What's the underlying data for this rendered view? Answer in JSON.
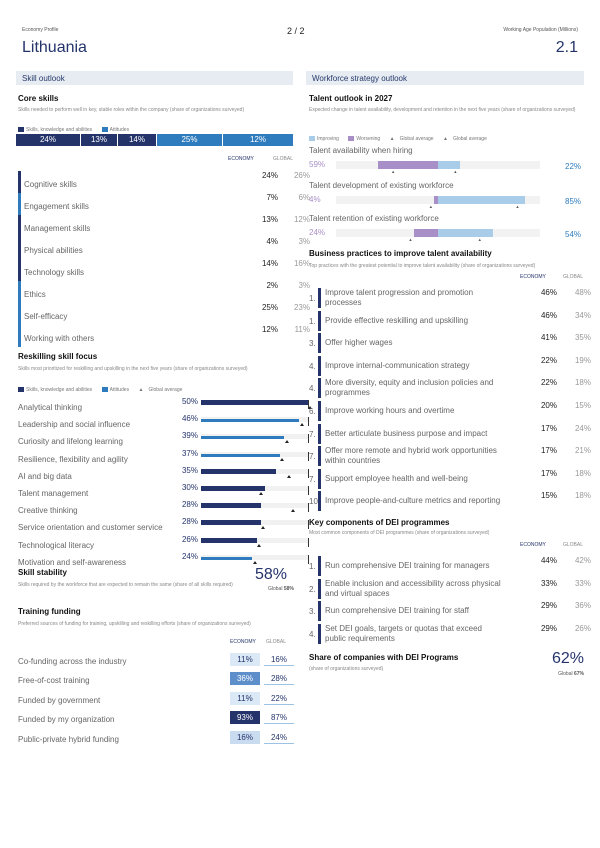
{
  "header": {
    "left": "Economy Profile",
    "page": "2 / 2",
    "right": "Working Age Population (Millions)",
    "country": "Lithuania",
    "population": "2.1"
  },
  "skill_outlook": {
    "title": "Skill outlook",
    "core_skills": {
      "title": "Core skills",
      "desc": "Skills needed to perform well in key, stable roles within the company (share of organizations surveyed)",
      "legend": [
        "Skills, knowledge and abilities",
        "Attitudes"
      ],
      "strip": [
        "24%",
        "13%",
        "14%",
        "25%",
        "12%"
      ],
      "col_economy": "ECONOMY",
      "col_global": "GLOBAL",
      "rows": [
        {
          "name": "Cognitive skills",
          "economy": "24%",
          "global": "26%"
        },
        {
          "name": "Engagement skills",
          "economy": "7%",
          "global": "6%"
        },
        {
          "name": "Management skills",
          "economy": "13%",
          "global": "12%"
        },
        {
          "name": "Physical abilities",
          "economy": "4%",
          "global": "3%"
        },
        {
          "name": "Technology skills",
          "economy": "14%",
          "global": "16%"
        },
        {
          "name": "Ethics",
          "economy": "2%",
          "global": "3%"
        },
        {
          "name": "Self-efficacy",
          "economy": "25%",
          "global": "23%"
        },
        {
          "name": "Working with others",
          "economy": "12%",
          "global": "11%"
        }
      ]
    },
    "reskilling": {
      "title": "Reskilling skill focus",
      "desc": "Skills most prioritized for reskilling and upskilling in the next five years (share of organizations surveyed)",
      "legend": [
        "Skills, knowledge and abilities",
        "Attitudes",
        "Global average"
      ],
      "rows": [
        {
          "name": "Analytical thinking",
          "value": "50%",
          "v": 50,
          "g": 51,
          "kind": "ska"
        },
        {
          "name": "Leadership and social influence",
          "value": "46%",
          "v": 46,
          "g": 47,
          "kind": "att"
        },
        {
          "name": "Curiosity and lifelong learning",
          "value": "39%",
          "v": 39,
          "g": 40,
          "kind": "att"
        },
        {
          "name": "Resilience, flexibility and agility",
          "value": "37%",
          "v": 37,
          "g": 38,
          "kind": "att"
        },
        {
          "name": "AI and big data",
          "value": "35%",
          "v": 35,
          "g": 41,
          "kind": "ska"
        },
        {
          "name": "Talent management",
          "value": "30%",
          "v": 30,
          "g": 28,
          "kind": "ska"
        },
        {
          "name": "Creative thinking",
          "value": "28%",
          "v": 28,
          "g": 43,
          "kind": "ska"
        },
        {
          "name": "Service orientation and customer service",
          "value": "28%",
          "v": 28,
          "g": 29,
          "kind": "ska"
        },
        {
          "name": "Technological literacy",
          "value": "26%",
          "v": 26,
          "g": 27,
          "kind": "ska"
        },
        {
          "name": "Motivation and self-awareness",
          "value": "24%",
          "v": 24,
          "g": 25,
          "kind": "att"
        }
      ]
    },
    "stability": {
      "title": "Skill stability",
      "desc": "Skills required by the workforce that are expected to remain the same (share of all skills required)",
      "value": "58%",
      "global_label": "Global",
      "global_value": "58%"
    },
    "funding": {
      "title": "Training funding",
      "desc": "Preferred sources of funding for training, upskilling and reskilling efforts (share of organizations surveyed)",
      "col_economy": "ECONOMY",
      "col_global": "GLOBAL",
      "rows": [
        {
          "name": "Co-funding across the industry",
          "economy": "11%",
          "global": "16%",
          "bg": "#dbe8f5",
          "fg": "#24346b"
        },
        {
          "name": "Free-of-cost training",
          "economy": "36%",
          "global": "28%",
          "bg": "#5f8fcb",
          "fg": "#ffffff"
        },
        {
          "name": "Funded by government",
          "economy": "11%",
          "global": "22%",
          "bg": "#dbe8f5",
          "fg": "#24346b"
        },
        {
          "name": "Funded by my organization",
          "economy": "93%",
          "global": "87%",
          "bg": "#24346b",
          "fg": "#ffffff"
        },
        {
          "name": "Public-private hybrid funding",
          "economy": "16%",
          "global": "24%",
          "bg": "#c9dbef",
          "fg": "#24346b"
        }
      ]
    }
  },
  "workforce": {
    "title": "Workforce strategy outlook",
    "talent": {
      "title": "Talent outlook in 2027",
      "desc": "Expected change in talent availability, development and retention in the next five years (share of organizations surveyed)",
      "legend": [
        "Improving",
        "Worsening",
        "Global average",
        "Global average"
      ],
      "rows": [
        {
          "name": "Talent availability when hiring",
          "worsening": "59%",
          "improving": "22%",
          "w": 59,
          "i": 22,
          "gw": 45,
          "gi": 16
        },
        {
          "name": "Talent development of existing workforce",
          "worsening": "4%",
          "improving": "85%",
          "w": 4,
          "i": 85,
          "gw": 8,
          "gi": 77
        },
        {
          "name": "Talent retention of existing workforce",
          "worsening": "24%",
          "improving": "54%",
          "w": 24,
          "i": 54,
          "gw": 28,
          "gi": 40
        }
      ]
    },
    "practices": {
      "title": "Business practices to improve talent availability",
      "desc": "Top practices with the greatest potential to improve talent availability (share of organizations surveyed)",
      "col_economy": "ECONOMY",
      "col_global": "GLOBAL",
      "rows": [
        {
          "num": "1.",
          "name": "Improve talent progression and promotion processes",
          "economy": "46%",
          "global": "48%"
        },
        {
          "num": "1.",
          "name": "Provide effective reskilling and upskilling",
          "economy": "46%",
          "global": "34%"
        },
        {
          "num": "3.",
          "name": "Offer higher wages",
          "economy": "41%",
          "global": "35%"
        },
        {
          "num": "4.",
          "name": "Improve internal-communication strategy",
          "economy": "22%",
          "global": "19%"
        },
        {
          "num": "4.",
          "name": "More diversity, equity and inclusion policies and programmes",
          "economy": "22%",
          "global": "18%"
        },
        {
          "num": "6.",
          "name": "Improve working hours and overtime",
          "economy": "20%",
          "global": "15%"
        },
        {
          "num": "7.",
          "name": "Better articulate business purpose and impact",
          "economy": "17%",
          "global": "24%"
        },
        {
          "num": "7.",
          "name": "Offer more remote and hybrid work opportunities within countries",
          "economy": "17%",
          "global": "21%"
        },
        {
          "num": "7.",
          "name": "Support employee health and well-being",
          "economy": "17%",
          "global": "18%"
        },
        {
          "num": "10.",
          "name": "Improve people-and-culture metrics and reporting",
          "economy": "15%",
          "global": "18%"
        }
      ]
    },
    "dei": {
      "title": "Key components of DEI programmes",
      "desc": "Most common components of DEI programmes (share of organizations surveyed)",
      "col_economy": "ECONOMY",
      "col_global": "GLOBAL",
      "rows": [
        {
          "num": "1.",
          "name": "Run comprehensive DEI training for managers",
          "economy": "44%",
          "global": "42%"
        },
        {
          "num": "2.",
          "name": "Enable inclusion and accessibility across physical and virtual spaces",
          "economy": "33%",
          "global": "33%"
        },
        {
          "num": "3.",
          "name": "Run comprehensive DEI training for staff",
          "economy": "29%",
          "global": "36%"
        },
        {
          "num": "4.",
          "name": "Set DEI goals, targets or quotas that exceed public requirements",
          "economy": "29%",
          "global": "26%"
        }
      ]
    },
    "dei_share": {
      "title": "Share of companies with DEI Programs",
      "desc": "(share of organizations surveyed)",
      "value": "62%",
      "global_label": "Global",
      "global_value": "67%"
    }
  },
  "colors": {
    "navy": "#24346b",
    "blue": "#2e7bbd",
    "purple": "#a98fc7",
    "lightblue": "#a9cde8"
  }
}
